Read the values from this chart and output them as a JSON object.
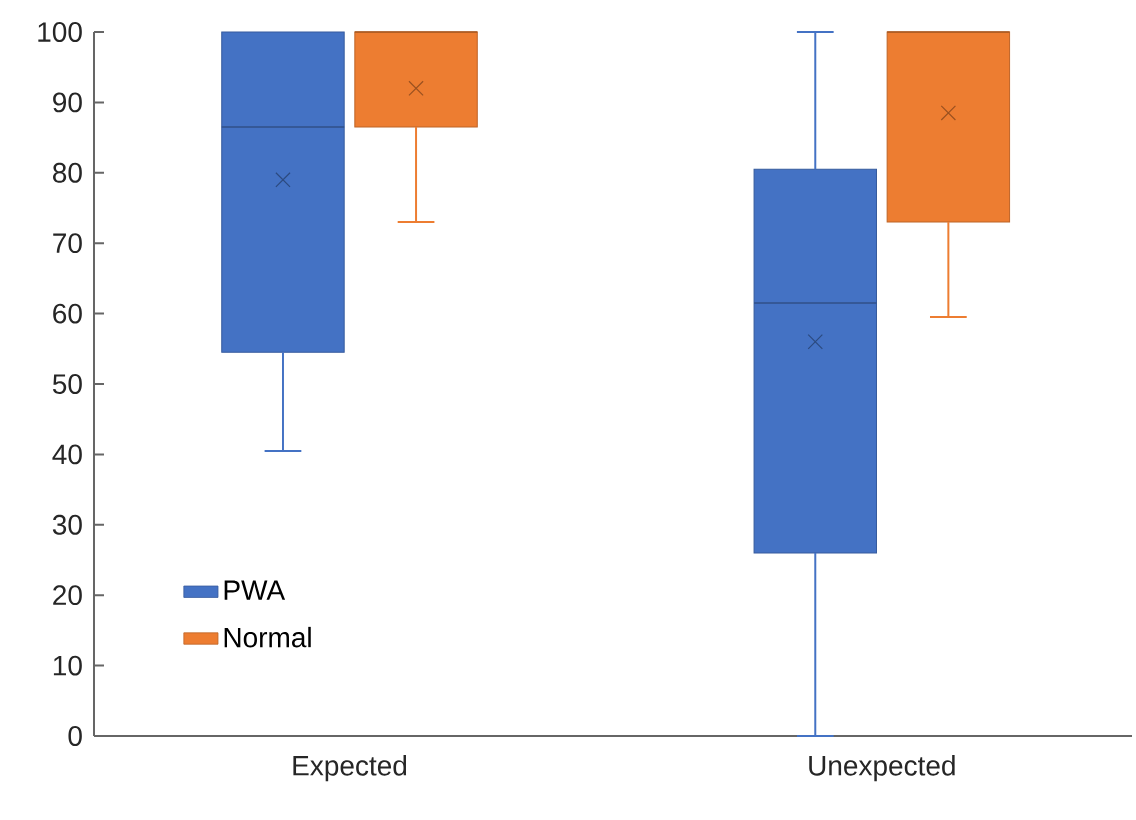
{
  "chart_data": {
    "type": "box",
    "categories": [
      "Expected",
      "Unexpected"
    ],
    "series": [
      {
        "name": "PWA",
        "color": "#4472c4",
        "boxes": [
          {
            "low": 40.5,
            "q1": 54.5,
            "median": 86.5,
            "q3": 100,
            "high": 100,
            "mean": 79
          },
          {
            "low": 0,
            "q1": 26,
            "median": 61.5,
            "q3": 80.5,
            "high": 100,
            "mean": 56
          }
        ]
      },
      {
        "name": "Normal",
        "color": "#ed7d31",
        "boxes": [
          {
            "low": 73,
            "q1": 86.5,
            "median": 100,
            "q3": 100,
            "high": 100,
            "mean": 92
          },
          {
            "low": 59.5,
            "q1": 73,
            "median": 100,
            "q3": 100,
            "high": 100,
            "mean": 88.5
          }
        ]
      }
    ],
    "ylim": [
      0,
      100
    ],
    "yticks": [
      0,
      10,
      20,
      30,
      40,
      50,
      60,
      70,
      80,
      90,
      100
    ],
    "grid": false,
    "legend": "bottom left"
  }
}
